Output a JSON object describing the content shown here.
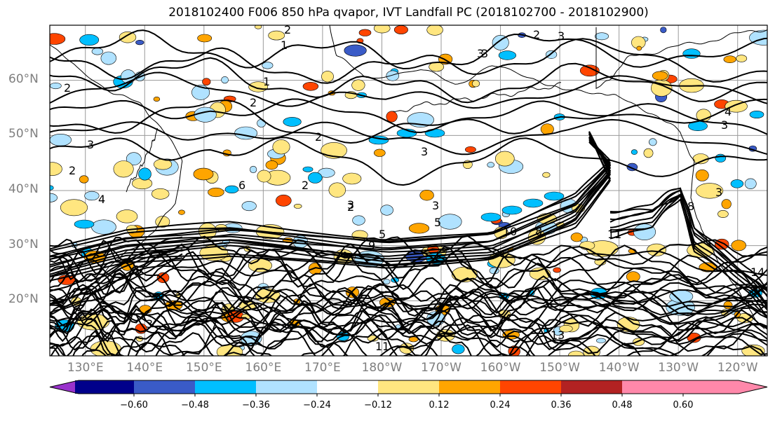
{
  "title": "2018102400 F006 850 hPa qvapor, IVT Landfall PC (2018102700 - 2018102900)",
  "map": {
    "lat_labels": [
      "60°N",
      "50°N",
      "40°N",
      "30°N",
      "20°N"
    ],
    "lon_labels": [
      "130°E",
      "140°E",
      "150°E",
      "160°E",
      "170°E",
      "180°W",
      "170°W",
      "160°W",
      "150°W",
      "140°W",
      "130°W",
      "120°W"
    ],
    "lat_range": [
      10,
      70
    ],
    "lon_range_east": [
      124,
      245
    ],
    "gridlines": true,
    "contour_labels": [
      "2",
      "1",
      "3",
      "2",
      "3",
      "3",
      "2",
      "1",
      "2",
      "3",
      "4",
      "3",
      "2",
      "6",
      "3",
      "5",
      "5",
      "9",
      "10",
      "11",
      "8",
      "8",
      "11",
      "13",
      "14",
      "7",
      "3",
      "4",
      "2",
      "3",
      "3",
      "2",
      "2",
      "3"
    ]
  },
  "colorbar": {
    "tick_labels": [
      "−0.60",
      "−0.48",
      "−0.36",
      "−0.24",
      "−0.12",
      "0.12",
      "0.24",
      "0.36",
      "0.48",
      "0.60"
    ],
    "colors": [
      "#9932cc",
      "#00008b",
      "#3a5bc7",
      "#00bfff",
      "#b0e2ff",
      "#ffffff",
      "#ffe680",
      "#ffa500",
      "#ff4500",
      "#b22222",
      "#ff88aa"
    ],
    "extend": "both"
  }
}
